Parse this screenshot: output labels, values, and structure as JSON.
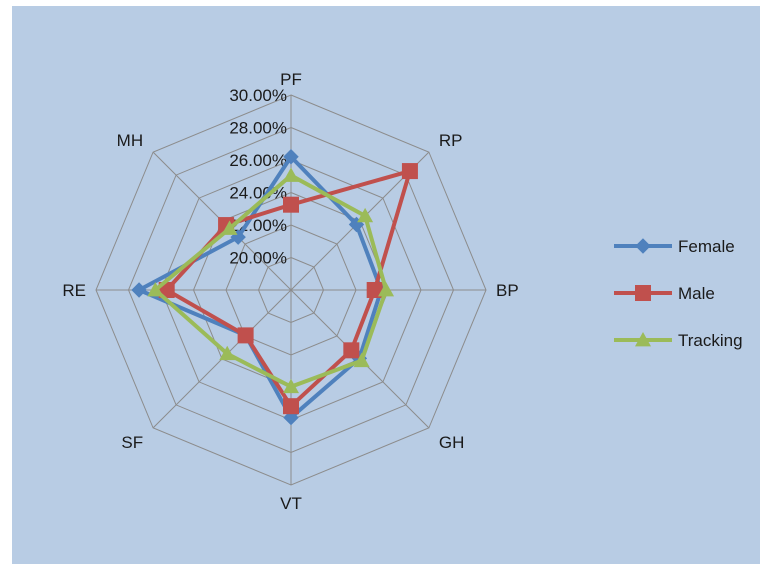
{
  "chart_data": {
    "type": "radar",
    "title": "",
    "categories": [
      "PF",
      "RP",
      "BP",
      "GH",
      "VT",
      "SF",
      "RE",
      "MH"
    ],
    "rlim": [
      0.18,
      0.3
    ],
    "ticks": [
      {
        "value": 0.2,
        "label": "20.00%"
      },
      {
        "value": 0.22,
        "label": "22.00%"
      },
      {
        "value": 0.24,
        "label": "24.00%"
      },
      {
        "value": 0.26,
        "label": "26.00%"
      },
      {
        "value": 0.28,
        "label": "28.00%"
      },
      {
        "value": 0.3,
        "label": "30.00%"
      }
    ],
    "grid": true,
    "legend_position": "right",
    "series": [
      {
        "name": "Female",
        "color": "#4f81bd",
        "marker": "diamond",
        "values": [
          0.262,
          0.237,
          0.2355,
          0.2395,
          0.2585,
          0.2195,
          0.2735,
          0.226
        ]
      },
      {
        "name": "Male",
        "color": "#c0504d",
        "marker": "square",
        "values": [
          0.2325,
          0.2835,
          0.2315,
          0.2325,
          0.2515,
          0.2195,
          0.2565,
          0.2365
        ]
      },
      {
        "name": "Tracking",
        "color": "#9bbb59",
        "marker": "triangle",
        "values": [
          0.2505,
          0.2445,
          0.2385,
          0.2415,
          0.2395,
          0.2355,
          0.2635,
          0.2335
        ]
      }
    ]
  }
}
